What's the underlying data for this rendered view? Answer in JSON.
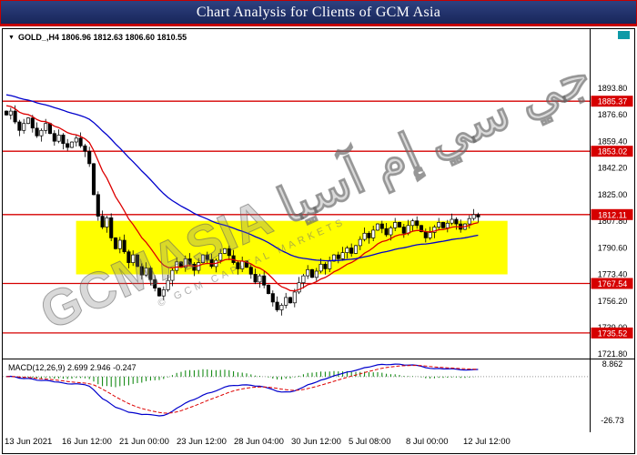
{
  "title_bar": {
    "title": "Chart Analysis for Clients of GCM Asia"
  },
  "legends": {
    "price_icon": "▼",
    "price": "GOLD_,H4 1806.96 1812.63 1806.60 1810.55",
    "macd": "MACD(12,26,9) 2.699 2.946 -0.247"
  },
  "watermark": {
    "main": "GCMASIA جي سي إم آسيا",
    "sub": "© GCM CAPITAL MARKETS"
  },
  "chart_data": [
    {
      "type": "candlestick",
      "symbol": "GOLD_",
      "timeframe": "H4",
      "ohlc_display": {
        "open": 1806.96,
        "high": 1812.63,
        "low": 1806.6,
        "close": 1810.55
      },
      "ylim": [
        1719.0,
        1932.0
      ],
      "y_ticks": [
        1893.8,
        1876.6,
        1859.4,
        1842.2,
        1825.0,
        1807.8,
        1790.6,
        1773.4,
        1756.2,
        1739.0,
        1721.8
      ],
      "x_tick_labels": [
        "13 Jun 2021",
        "16 Jun 12:00",
        "21 Jun 00:00",
        "23 Jun 12:00",
        "28 Jun 04:00",
        "30 Jun 12:00",
        "5 Jul 08:00",
        "8 Jul 00:00",
        "12 Jul 12:00"
      ],
      "closes": [
        1876.5,
        1879.0,
        1872.0,
        1866.5,
        1871.0,
        1874.5,
        1868.0,
        1863.0,
        1866.5,
        1871.0,
        1864.5,
        1859.5,
        1863.5,
        1858.0,
        1855.5,
        1859.0,
        1861.5,
        1856.5,
        1853.0,
        1845.0,
        1825.0,
        1811.0,
        1804.0,
        1810.0,
        1797.0,
        1790.0,
        1795.5,
        1788.0,
        1781.0,
        1786.0,
        1778.5,
        1773.0,
        1777.5,
        1770.0,
        1764.5,
        1759.5,
        1763.5,
        1769.5,
        1776.0,
        1781.5,
        1778.0,
        1783.5,
        1780.0,
        1776.0,
        1781.0,
        1786.0,
        1783.0,
        1778.5,
        1782.5,
        1787.0,
        1790.0,
        1785.5,
        1781.0,
        1777.0,
        1782.0,
        1778.0,
        1773.5,
        1768.5,
        1772.5,
        1766.5,
        1761.0,
        1755.5,
        1750.5,
        1753.5,
        1758.5,
        1755.0,
        1762.0,
        1768.0,
        1772.5,
        1776.5,
        1771.5,
        1775.5,
        1780.0,
        1777.0,
        1782.0,
        1786.0,
        1783.5,
        1787.5,
        1790.5,
        1787.0,
        1792.0,
        1796.0,
        1800.0,
        1797.0,
        1802.0,
        1806.0,
        1803.0,
        1799.0,
        1803.5,
        1807.0,
        1804.0,
        1800.0,
        1805.0,
        1808.0,
        1805.0,
        1801.0,
        1797.0,
        1800.5,
        1804.0,
        1807.0,
        1803.5,
        1806.5,
        1809.0,
        1806.0,
        1802.5,
        1806.0,
        1809.5,
        1812.0,
        1810.55
      ],
      "overlays": [
        {
          "name": "ma-fast",
          "type": "ema",
          "period": 12,
          "color": "#dd0000",
          "seed_offset": 6
        },
        {
          "name": "ma-slow",
          "type": "ema",
          "period": 45,
          "color": "#0000cc",
          "seed_offset": 13
        }
      ],
      "support_resistance_lines": {
        "color": "#d60000",
        "values": [
          1885.37,
          1853.02,
          1812.11,
          1767.54,
          1735.52
        ]
      },
      "highlight_zone": {
        "color": "#ffff00",
        "price_top": 1808.0,
        "price_bottom": 1773.4,
        "start_frac": 0.125,
        "end_frac": 0.86
      },
      "candle_up_color": "#ffffff",
      "candle_down_color": "#000000"
    },
    {
      "type": "line",
      "name": "MACD",
      "params": {
        "fast": 12,
        "slow": 26,
        "signal": 9
      },
      "current": {
        "macd": 2.699,
        "signal": 2.946,
        "histogram": -0.247
      },
      "ylim": [
        -34.0,
        10.5
      ],
      "y_ticks": [
        8.862,
        -26.73
      ],
      "colors": {
        "macd": "#0000cc",
        "signal": "#dd0000",
        "histogram": "#008000"
      }
    }
  ]
}
